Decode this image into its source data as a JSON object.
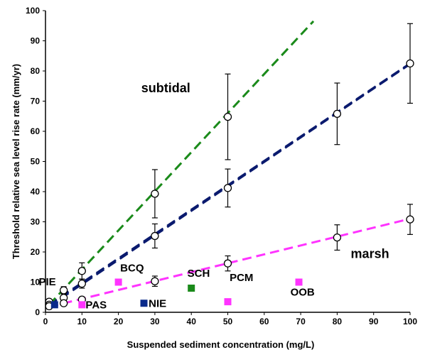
{
  "chart_data": {
    "type": "scatter",
    "xlabel": "Suspended sediment concentration (mg/L)",
    "ylabel": "Threshold relative sea level rise rate (mm/yr)",
    "xlim": [
      0,
      100
    ],
    "ylim": [
      0,
      100
    ],
    "x_ticks": [
      "0",
      "10",
      "20",
      "30",
      "40",
      "50",
      "60",
      "70",
      "80",
      "90",
      "100"
    ],
    "y_ticks": [
      "0",
      "10",
      "20",
      "30",
      "40",
      "50",
      "60",
      "70",
      "80",
      "90",
      "100"
    ],
    "grid": false,
    "series": [
      {
        "color": "#0a1a6e",
        "style": "dashed-line",
        "line": [
          [
            1,
            2.5
          ],
          [
            100,
            82.5
          ]
        ],
        "points": [
          {
            "x": 1,
            "y": 3.5,
            "err": 0
          },
          {
            "x": 5,
            "y": 7.3,
            "err": 1.2
          },
          {
            "x": 10,
            "y": 13.7,
            "err": 2.7
          },
          {
            "x": 30,
            "y": 39.3,
            "err": 8.0
          },
          {
            "x": 50,
            "y": 64.8,
            "err": 14.2
          },
          {
            "x": 80,
            "y": 65.8,
            "err": 10.2
          },
          {
            "x": 100,
            "y": 82.5,
            "err": 13.2
          }
        ]
      },
      {
        "color": "#0a1a6e",
        "style": "dashed-line",
        "line": [
          [
            1,
            2.0
          ],
          [
            100,
            82.3
          ]
        ],
        "points": [
          {
            "x": 1,
            "y": 2.5,
            "err": 0
          },
          {
            "x": 5,
            "y": 4.8,
            "err": 0
          },
          {
            "x": 10,
            "y": 9.5,
            "err": 1.5
          },
          {
            "x": 30,
            "y": 25.3,
            "err": 4.0
          },
          {
            "x": 50,
            "y": 41.2,
            "err": 6.3
          }
        ]
      },
      {
        "color": "#ff33ff",
        "style": "dashed-line",
        "line": [
          [
            1,
            1.8
          ],
          [
            100,
            31.0
          ]
        ],
        "points": [
          {
            "x": 1,
            "y": 2.0,
            "err": 0
          },
          {
            "x": 5,
            "y": 3.0,
            "err": 0
          },
          {
            "x": 10,
            "y": 4.2,
            "err": 0
          },
          {
            "x": 30,
            "y": 10.3,
            "err": 1.7
          },
          {
            "x": 50,
            "y": 16.2,
            "err": 2.5
          },
          {
            "x": 80,
            "y": 24.8,
            "err": 4.2
          },
          {
            "x": 100,
            "y": 30.8,
            "err": 5.0
          }
        ]
      },
      {
        "color": "#1a8a1a",
        "style": "dashed-line",
        "line": [
          [
            1,
            2.5
          ],
          [
            73.5,
            96.5
          ]
        ],
        "points": []
      }
    ],
    "annotations": [
      {
        "text": "subtidal",
        "x": 33,
        "y": 73
      },
      {
        "text": "marsh",
        "x": 89,
        "y": 18
      }
    ],
    "sites": [
      {
        "label": "PIE",
        "x": 2.5,
        "y": 2.5,
        "color": "#0a2a8a",
        "label_dx": -2.0,
        "label_dy": 6.5,
        "anchor": "middle"
      },
      {
        "label": "PAS",
        "x": 10,
        "y": 2.5,
        "color": "#ff33ff",
        "label_dx": 1.0,
        "label_dy": -1.2,
        "anchor": "start"
      },
      {
        "label": "BCQ",
        "x": 20,
        "y": 10,
        "color": "#ff33ff",
        "label_dx": 0.5,
        "label_dy": 3.5,
        "anchor": "start"
      },
      {
        "label": "NIE",
        "x": 27,
        "y": 3,
        "color": "#0a2a8a",
        "label_dx": 1.3,
        "label_dy": -1.2,
        "anchor": "start"
      },
      {
        "label": "SCH",
        "x": 40,
        "y": 8,
        "color": "#1a8a1a",
        "label_dx": 2.0,
        "label_dy": 3.8,
        "anchor": "middle"
      },
      {
        "label": "PCM",
        "x": 50,
        "y": 3.5,
        "color": "#ff33ff",
        "label_dx": 0.5,
        "label_dy": 6.8,
        "anchor": "start"
      },
      {
        "label": "OOB",
        "x": 69.5,
        "y": 10,
        "color": "#ff33ff",
        "label_dx": 1.0,
        "label_dy": -4.5,
        "anchor": "middle"
      }
    ]
  }
}
